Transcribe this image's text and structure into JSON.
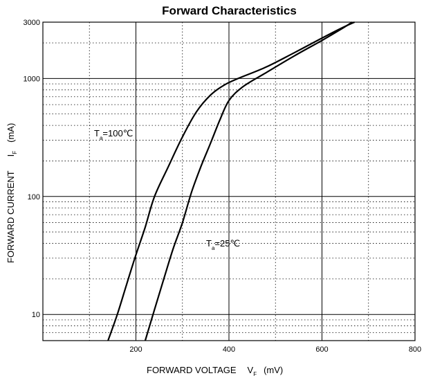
{
  "chart_data": {
    "type": "line",
    "title": "Forward Characteristics",
    "xlabel": {
      "main": "FORWARD VOLTAGE",
      "symbol": "V",
      "subscript": "F",
      "unit": "(mV)"
    },
    "ylabel": {
      "main": "FORWARD CURRENT",
      "symbol": "I",
      "subscript": "F",
      "unit": "(mA)"
    },
    "xlim": [
      0,
      800
    ],
    "ylim": [
      6,
      3000
    ],
    "yscale": "log",
    "grid": true,
    "x_ticks": [
      200,
      400,
      600,
      800
    ],
    "y_ticks": [
      {
        "v": 10,
        "label": "10"
      },
      {
        "v": 100,
        "label": "100"
      },
      {
        "v": 1000,
        "label": "1000"
      },
      {
        "v": 3000,
        "label": "3000"
      }
    ],
    "series": [
      {
        "name": "T_a=100℃",
        "label_main": "T",
        "label_sub": "a",
        "label_rest": "=100℃",
        "x": [
          140,
          160,
          180,
          200,
          220,
          240,
          270,
          300,
          330,
          360,
          390,
          420,
          480,
          540,
          600,
          640,
          670
        ],
        "y": [
          6,
          10,
          18,
          32,
          55,
          100,
          180,
          320,
          520,
          720,
          880,
          1000,
          1250,
          1650,
          2200,
          2650,
          3000
        ]
      },
      {
        "name": "T_a=25℃",
        "label_main": "T",
        "label_sub": "a",
        "label_rest": "=25℃",
        "x": [
          220,
          240,
          260,
          280,
          300,
          320,
          340,
          360,
          380,
          400,
          430,
          480,
          540,
          600,
          640,
          665
        ],
        "y": [
          6,
          11,
          20,
          36,
          60,
          110,
          180,
          280,
          440,
          650,
          850,
          1120,
          1550,
          2100,
          2600,
          3000
        ]
      }
    ]
  }
}
